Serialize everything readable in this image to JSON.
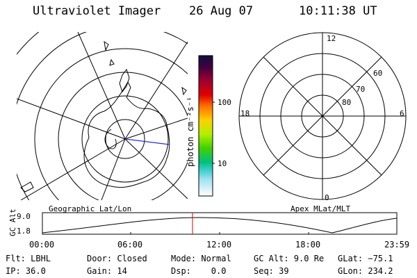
{
  "header": {
    "title": "Ultraviolet Imager",
    "date": "26 Aug 07",
    "time": "10:11:38 UT"
  },
  "geo_panel": {
    "label": "Geographic Lat/Lon"
  },
  "color_bar": {
    "unit_label": "photon cm⁻²s⁻¹",
    "ticks": [
      {
        "label": "100",
        "value": 100
      },
      {
        "label": "10",
        "value": 10
      }
    ]
  },
  "polar_panel": {
    "label": "Apex MLat/MLT",
    "mlt_labels": {
      "top": "12",
      "left": "18",
      "right": "6",
      "bottom": "0"
    },
    "mlat_labels": [
      "60",
      "70",
      "80"
    ]
  },
  "altitude_strip": {
    "axis_label": "GC Alt",
    "y_ticks": [
      "9.0",
      "1.8"
    ],
    "time_ticks": [
      "00:00",
      "06:00",
      "12:00",
      "18:00",
      "23:59"
    ]
  },
  "status": {
    "row1": [
      {
        "key": "filter",
        "text": "Flt: LBHL"
      },
      {
        "key": "door",
        "text": "Door: Closed"
      },
      {
        "key": "mode",
        "text": "Mode: Normal"
      },
      {
        "key": "gc_alt",
        "text": "GC Alt: 9.0 Re"
      },
      {
        "key": "glat",
        "text": "GLat: −75.1"
      }
    ],
    "row2": [
      {
        "key": "ip",
        "text": "IP: 36.0"
      },
      {
        "key": "gain",
        "text": "Gain: 14"
      },
      {
        "key": "dsp",
        "text": "Dsp:    0.0"
      },
      {
        "key": "seq",
        "text": "Seq: 39"
      },
      {
        "key": "glon",
        "text": "GLon: 234.2"
      }
    ]
  },
  "colors": {
    "background": "#ffffff",
    "foreground": "#000000",
    "time_marker": "#dd0000",
    "longitude_marker": "#2233cc"
  }
}
